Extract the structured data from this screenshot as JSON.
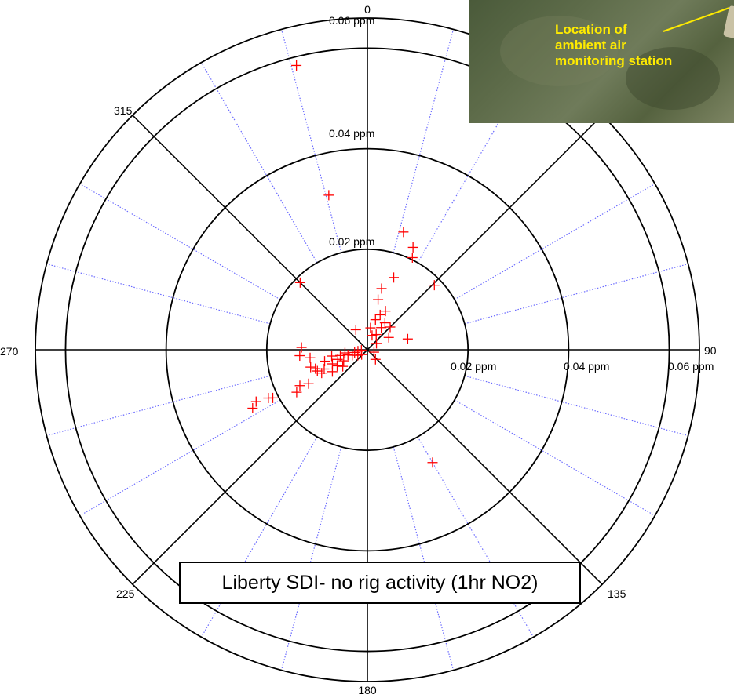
{
  "chart_data": {
    "type": "scatter",
    "subtype": "polar",
    "title": "Liberty SDI- no rig activity (1hr NO2)",
    "angle_ticks": [
      "0",
      "90",
      "135",
      "180",
      "225",
      "270",
      "315"
    ],
    "radial_ticks": [
      "0.02 ppm",
      "0.04 ppm",
      "0.06 ppm"
    ],
    "radial_tick_values": [
      0.02,
      0.04,
      0.06
    ],
    "r_max": 0.066,
    "marker": "+",
    "marker_color": "#ff0000",
    "major_gridline_color": "#000000",
    "minor_gridline_color": "#6a6aff",
    "points": [
      {
        "theta": 346,
        "r": 0.0583
      },
      {
        "theta": 346,
        "r": 0.0317
      },
      {
        "theta": 315,
        "r": 0.0189
      },
      {
        "theta": 17,
        "r": 0.0245
      },
      {
        "theta": 24,
        "r": 0.0223
      },
      {
        "theta": 26,
        "r": 0.0204
      },
      {
        "theta": 46,
        "r": 0.0185
      },
      {
        "theta": 20,
        "r": 0.0153
      },
      {
        "theta": 12,
        "r": 0.0102
      },
      {
        "theta": 13,
        "r": 0.0125
      },
      {
        "theta": 25,
        "r": 0.0085
      },
      {
        "theta": 33,
        "r": 0.0064
      },
      {
        "theta": 45,
        "r": 0.0064
      },
      {
        "theta": 75,
        "r": 0.0083
      },
      {
        "theta": 60,
        "r": 0.0049
      },
      {
        "theta": 30,
        "r": 0.0035
      },
      {
        "theta": 20,
        "r": 0.0074
      },
      {
        "theta": 32,
        "r": 0.0052
      },
      {
        "theta": 15,
        "r": 0.0062
      },
      {
        "theta": 8,
        "r": 0.0044
      },
      {
        "theta": 18,
        "r": 0.003
      },
      {
        "theta": 330,
        "r": 0.0046
      },
      {
        "theta": 55,
        "r": 0.0022
      },
      {
        "theta": 140,
        "r": 0.0025
      },
      {
        "theta": 110,
        "r": 0.0014
      },
      {
        "theta": 150,
        "r": 0.0259
      },
      {
        "theta": 272,
        "r": 0.0131
      },
      {
        "theta": 265,
        "r": 0.0135
      },
      {
        "theta": 262,
        "r": 0.0115
      },
      {
        "theta": 253,
        "r": 0.0118
      },
      {
        "theta": 250,
        "r": 0.011
      },
      {
        "theta": 247,
        "r": 0.0108
      },
      {
        "theta": 243,
        "r": 0.0102
      },
      {
        "theta": 238,
        "r": 0.0082
      },
      {
        "theta": 255,
        "r": 0.0088
      },
      {
        "theta": 248,
        "r": 0.0075
      },
      {
        "theta": 260,
        "r": 0.0072
      },
      {
        "theta": 252,
        "r": 0.0062
      },
      {
        "theta": 258,
        "r": 0.0055
      },
      {
        "theta": 245,
        "r": 0.0052
      },
      {
        "theta": 262,
        "r": 0.0045
      },
      {
        "theta": 255,
        "r": 0.004
      },
      {
        "theta": 250,
        "r": 0.0032
      },
      {
        "theta": 258,
        "r": 0.0026
      },
      {
        "theta": 240,
        "r": 0.0022
      },
      {
        "theta": 262,
        "r": 0.0019
      },
      {
        "theta": 230,
        "r": 0.0015
      },
      {
        "theta": 266,
        "r": 0.0012
      },
      {
        "theta": 236,
        "r": 0.0059
      },
      {
        "theta": 242,
        "r": 0.0068
      },
      {
        "theta": 246,
        "r": 0.0094
      },
      {
        "theta": 240,
        "r": 0.0135
      },
      {
        "theta": 242,
        "r": 0.0152
      },
      {
        "theta": 239,
        "r": 0.0164
      },
      {
        "theta": 243,
        "r": 0.0211
      },
      {
        "theta": 244,
        "r": 0.0219
      },
      {
        "theta": 245,
        "r": 0.0244
      },
      {
        "theta": 243,
        "r": 0.0256
      }
    ]
  },
  "inset": {
    "label_lines": [
      "Location of",
      "ambient air",
      "monitoring station"
    ],
    "label_color": "#ffeb00"
  }
}
